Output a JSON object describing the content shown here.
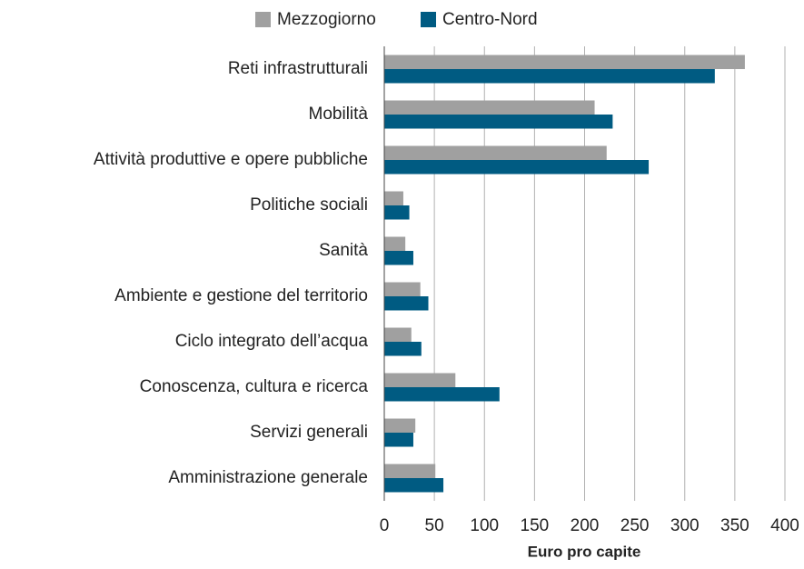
{
  "chart_data": {
    "type": "bar",
    "orientation": "horizontal",
    "x_label": "Euro pro capite",
    "categories": [
      "Reti infrastrutturali",
      "Mobilità",
      "Attività produttive e opere pubbliche",
      "Politiche sociali",
      "Sanità",
      "Ambiente e gestione del territorio",
      "Ciclo integrato dell’acqua",
      "Conoscenza, cultura e ricerca",
      "Servizi generali",
      "Amministrazione generale"
    ],
    "series": [
      {
        "name": "Mezzogiorno",
        "color": "#a0a0a0",
        "values": [
          360,
          210,
          222,
          19,
          21,
          36,
          27,
          71,
          31,
          51
        ]
      },
      {
        "name": "Centro-Nord",
        "color": "#005b82",
        "values": [
          330,
          228,
          264,
          25,
          29,
          44,
          37,
          115,
          29,
          59
        ]
      }
    ],
    "xlim": [
      0,
      400
    ],
    "xticks": [
      0,
      50,
      100,
      150,
      200,
      250,
      300,
      350,
      400
    ],
    "grid": true,
    "legend": "top"
  }
}
